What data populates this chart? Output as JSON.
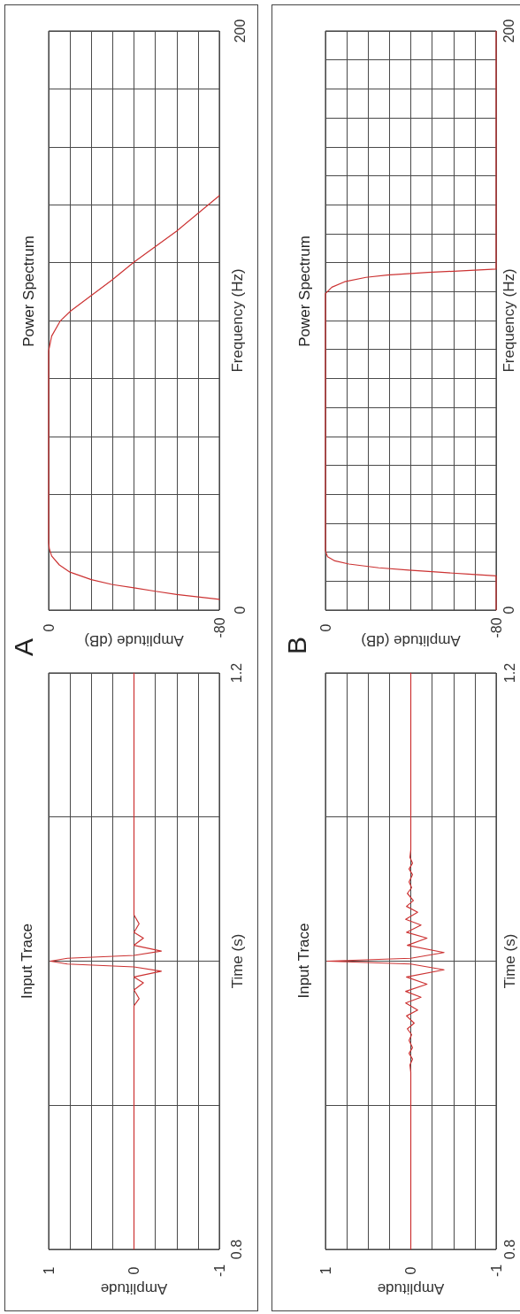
{
  "chart_data": [
    {
      "type": "line",
      "title": "Power Spectrum",
      "xlabel": "Amplitude (dB)",
      "ylabel": "Frequency (Hz)",
      "annotations": [
        "A"
      ],
      "x": [
        -80,
        -60,
        -50,
        -40,
        -30,
        -20,
        -10,
        -5,
        -1.4,
        -0.3,
        0,
        0,
        -1.4,
        -5.5,
        -10.3,
        -18.6,
        -29.7,
        -40,
        -60,
        -80
      ],
      "series": [
        {
          "color": "#cc3333",
          "values": [
            3.7,
            5.4,
            6.5,
            7.7,
            8.8,
            10.5,
            13.1,
            15.6,
            18.7,
            21.3,
            23.3,
            89.5,
            94.6,
            99.9,
            103.3,
            107.9,
            114,
            120.2,
            130.9,
            143.1
          ]
        }
      ],
      "xlim": [
        0,
        -80
      ],
      "ylim": [
        0,
        200
      ],
      "xticks": [
        0,
        {
          "value": -10,
          "label": null
        },
        {
          "value": -20,
          "label": null
        },
        {
          "value": -30,
          "label": null
        },
        {
          "value": -40,
          "label": null
        },
        {
          "value": -50,
          "label": null
        },
        {
          "value": -60,
          "label": null
        },
        {
          "value": -70,
          "label": null
        },
        -80
      ],
      "yticks": [
        0,
        {
          "value": 20,
          "label": null
        },
        {
          "value": 40,
          "label": null
        },
        {
          "value": 60,
          "label": null
        },
        {
          "value": 80,
          "label": null
        },
        {
          "value": 100,
          "label": null
        },
        {
          "value": 120,
          "label": null
        },
        {
          "value": 140,
          "label": null
        },
        {
          "value": 160,
          "label": null
        },
        {
          "value": 180,
          "label": null
        },
        200
      ],
      "grid": true
    },
    {
      "type": "line",
      "title": "Power Spectrum",
      "xlabel": "Amplitude (dB)",
      "ylabel": "Frequency (Hz)",
      "annotations": [
        "B"
      ],
      "x": [
        -80,
        -80,
        -67,
        -53,
        -39,
        -25,
        -11,
        -4.4,
        -1,
        -0.3,
        0,
        0,
        -3,
        -9,
        -19,
        -29,
        -48,
        -68,
        -80,
        -80
      ],
      "series": [
        {
          "color": "#cc3333",
          "values": [
            0,
            11.8,
            12.4,
            13.1,
            13.8,
            14.6,
            15.9,
            17,
            18.4,
            19.7,
            20.6,
            109.3,
            111.5,
            113.4,
            114.9,
            115.7,
            116.6,
            117.3,
            117.8,
            200
          ]
        }
      ],
      "xlim": [
        0,
        -80
      ],
      "ylim": [
        0,
        200
      ],
      "xticks": [
        0,
        {
          "value": -10,
          "label": null
        },
        {
          "value": -20,
          "label": null
        },
        {
          "value": -30,
          "label": null
        },
        {
          "value": -40,
          "label": null
        },
        {
          "value": -50,
          "label": null
        },
        {
          "value": -60,
          "label": null
        },
        {
          "value": -70,
          "label": null
        },
        -80
      ],
      "yticks": [
        0,
        {
          "value": 10,
          "label": null
        },
        {
          "value": 20,
          "label": null
        },
        {
          "value": 30,
          "label": null
        },
        {
          "value": 40,
          "label": null
        },
        {
          "value": 50,
          "label": null
        },
        {
          "value": 60,
          "label": null
        },
        {
          "value": 70,
          "label": null
        },
        {
          "value": 80,
          "label": null
        },
        {
          "value": 90,
          "label": null
        },
        {
          "value": 100,
          "label": null
        },
        {
          "value": 110,
          "label": null
        },
        {
          "value": 120,
          "label": null
        },
        {
          "value": 130,
          "label": null
        },
        {
          "value": 140,
          "label": null
        },
        {
          "value": 150,
          "label": null
        },
        {
          "value": 160,
          "label": null
        },
        {
          "value": 170,
          "label": null
        },
        {
          "value": 180,
          "label": null
        },
        {
          "value": 190,
          "label": null
        },
        200
      ],
      "grid": true
    },
    {
      "type": "line",
      "title": "Input Trace",
      "xlabel": "Amplitude",
      "ylabel": "Time (s)",
      "x": [
        0,
        0,
        -0.06,
        0,
        -0.11,
        0,
        -0.32,
        0,
        0.78,
        0.98,
        0.78,
        0,
        -0.32,
        0,
        -0.11,
        0,
        -0.06,
        0,
        0
      ],
      "series": [
        {
          "color": "#cc3333",
          "values": [
            0.8,
            0.969,
            0.974,
            0.98,
            0.985,
            0.989,
            0.993,
            0.996,
            0.998,
            1.0,
            1.002,
            1.004,
            1.007,
            1.011,
            1.016,
            1.02,
            1.026,
            1.032,
            1.2
          ]
        }
      ],
      "xlim": [
        1,
        -1
      ],
      "ylim": [
        0.8,
        1.2
      ],
      "xticks": [
        1,
        {
          "value": 0.75,
          "label": null
        },
        {
          "value": 0.5,
          "label": null
        },
        {
          "value": 0.25,
          "label": null
        },
        0,
        {
          "value": -0.25,
          "label": null
        },
        {
          "value": -0.5,
          "label": null
        },
        {
          "value": -0.75,
          "label": null
        },
        -1
      ],
      "yticks": [
        0.8,
        {
          "value": 0.9,
          "label": null
        },
        {
          "value": 1,
          "label": null
        },
        {
          "value": 1.1,
          "label": null
        },
        1.2
      ],
      "grid": true
    },
    {
      "type": "line",
      "title": "Input Trace",
      "xlabel": "Amplitude",
      "ylabel": "Time (s)",
      "x": [
        0,
        0,
        0.01,
        -0.02,
        0.02,
        -0.02,
        0.02,
        -0.01,
        0.04,
        -0.04,
        0.05,
        -0.08,
        0.06,
        -0.12,
        0.06,
        -0.19,
        0.05,
        -0.39,
        0,
        0.98,
        0,
        -0.39,
        0.04,
        -0.19,
        0.05,
        -0.12,
        0.06,
        -0.08,
        0.05,
        -0.03,
        0.04,
        -0.01,
        0.02,
        -0.02,
        0.02,
        -0.02,
        0.01,
        0,
        0
      ],
      "series": [
        {
          "color": "#cc3333",
          "values": [
            0.8,
            0.923,
            0.928,
            0.932,
            0.936,
            0.94,
            0.945,
            0.949,
            0.953,
            0.957,
            0.962,
            0.966,
            0.971,
            0.975,
            0.979,
            0.984,
            0.989,
            0.994,
            0.998,
            1.0,
            1.002,
            1.006,
            1.011,
            1.016,
            1.02,
            1.025,
            1.029,
            1.034,
            1.038,
            1.042,
            1.047,
            1.051,
            1.055,
            1.06,
            1.064,
            1.068,
            1.072,
            1.077,
            1.2
          ]
        }
      ],
      "xlim": [
        1,
        -1
      ],
      "ylim": [
        0.8,
        1.2
      ],
      "xticks": [
        1,
        {
          "value": 0.75,
          "label": null
        },
        {
          "value": 0.5,
          "label": null
        },
        {
          "value": 0.25,
          "label": null
        },
        0,
        {
          "value": -0.25,
          "label": null
        },
        {
          "value": -0.5,
          "label": null
        },
        {
          "value": -0.75,
          "label": null
        },
        -1
      ],
      "yticks": [
        0.8,
        {
          "value": 0.9,
          "label": null
        },
        {
          "value": 1,
          "label": null
        },
        {
          "value": 1.1,
          "label": null
        },
        1.2
      ],
      "grid": true
    }
  ]
}
